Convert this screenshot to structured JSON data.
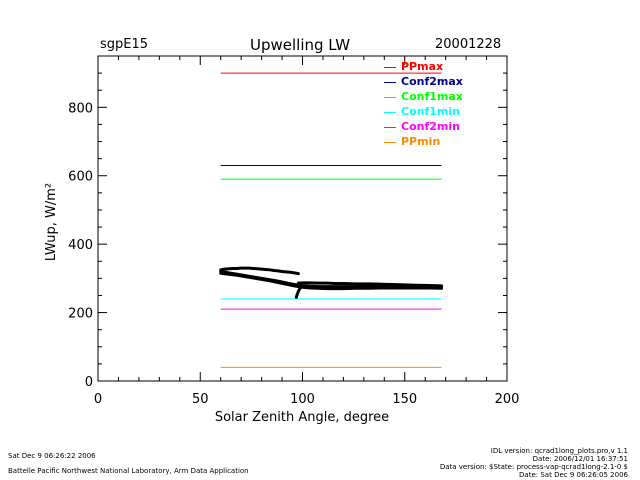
{
  "header": {
    "site": "sgpE15",
    "title": "Upwelling  LW",
    "date": "20001228"
  },
  "footer": {
    "left_line1": "Sat Dec  9 06:26:22 2006",
    "left_line2": "Battelle Pacific Northwest National Laboratory, Arm Data Application",
    "right_line1": "IDL version: qcrad1long_plots.pro,v 1.1",
    "right_line2": "Date: 2006/12/01 16:37:51",
    "right_line3": "Data version: $State: process-vap-qcrad1long-2.1-0 $",
    "right_line4": "Date: Sat Dec  9 06:26:05 2006"
  },
  "chart_data": {
    "type": "line",
    "xlabel": "Solar  Zenith  Angle,  degree",
    "ylabel": "LWup,  W/m²",
    "xlim": [
      0,
      200
    ],
    "ylim": [
      0,
      950
    ],
    "xticks": [
      0,
      50,
      100,
      150,
      200
    ],
    "yticks": [
      200,
      400,
      600,
      800
    ],
    "x_minor_step": 10,
    "y_minor_step": 50,
    "grid": false,
    "legend_position": "top-right",
    "series": [
      {
        "name": "PPmax",
        "color": "#ff0000",
        "x": [
          60,
          168
        ],
        "y": [
          900,
          900
        ]
      },
      {
        "name": "Conf2max",
        "color": "#00008b",
        "x": [
          60,
          168
        ],
        "y": [
          630,
          630
        ]
      },
      {
        "name": "Conf1max",
        "color": "#00ff00",
        "x": [
          60,
          168
        ],
        "y": [
          590,
          590
        ]
      },
      {
        "name": "Conf1min",
        "color": "#00ffff",
        "x": [
          60,
          168
        ],
        "y": [
          240,
          240
        ]
      },
      {
        "name": "Conf2min",
        "color": "#ff00ff",
        "x": [
          60,
          168
        ],
        "y": [
          210,
          210
        ]
      },
      {
        "name": "PPmin",
        "color": "#ff8c00",
        "x": [
          60,
          168
        ],
        "y": [
          40,
          40
        ]
      }
    ],
    "observed": [
      {
        "color": "#000000",
        "x": [
          60,
          62,
          64,
          66,
          68,
          70,
          72,
          74,
          76,
          78,
          80,
          82,
          84,
          86,
          88,
          90,
          92,
          94,
          96,
          98
        ],
        "y": [
          325,
          327,
          328,
          329,
          329,
          330,
          330,
          330,
          329,
          328,
          327,
          326,
          325,
          323,
          322,
          320,
          319,
          318,
          316,
          314
        ]
      },
      {
        "color": "#000000",
        "x": [
          60,
          64,
          68,
          72,
          76,
          80,
          84,
          88,
          92,
          96,
          100,
          104,
          108,
          112,
          116,
          120,
          126,
          132,
          138,
          144,
          150,
          156,
          162,
          168
        ],
        "y": [
          315,
          312,
          309,
          305,
          301,
          297,
          293,
          288,
          283,
          278,
          274,
          272,
          271,
          270,
          270,
          270,
          271,
          271,
          272,
          272,
          272,
          272,
          272,
          271
        ]
      },
      {
        "color": "#000000",
        "x": [
          60,
          64,
          68,
          72,
          76,
          80,
          84,
          88,
          92,
          96,
          100,
          104,
          108,
          112,
          116,
          120,
          126,
          132,
          138,
          144,
          150,
          156,
          162,
          168
        ],
        "y": [
          320,
          316,
          312,
          308,
          304,
          300,
          296,
          292,
          287,
          282,
          278,
          277,
          276,
          276,
          276,
          276,
          276,
          277,
          277,
          277,
          276,
          276,
          275,
          275
        ]
      },
      {
        "color": "#000000",
        "x": [
          98,
          100,
          104,
          108,
          112,
          116,
          120,
          126,
          132,
          138,
          144,
          150,
          156,
          162,
          168
        ],
        "y": [
          286,
          287,
          287,
          286,
          286,
          285,
          285,
          284,
          284,
          283,
          282,
          281,
          280,
          279,
          278
        ]
      },
      {
        "color": "#000000",
        "x": [
          97,
          97.5,
          98,
          98.5,
          99
        ],
        "y": [
          245,
          255,
          262,
          268,
          272
        ]
      }
    ]
  }
}
